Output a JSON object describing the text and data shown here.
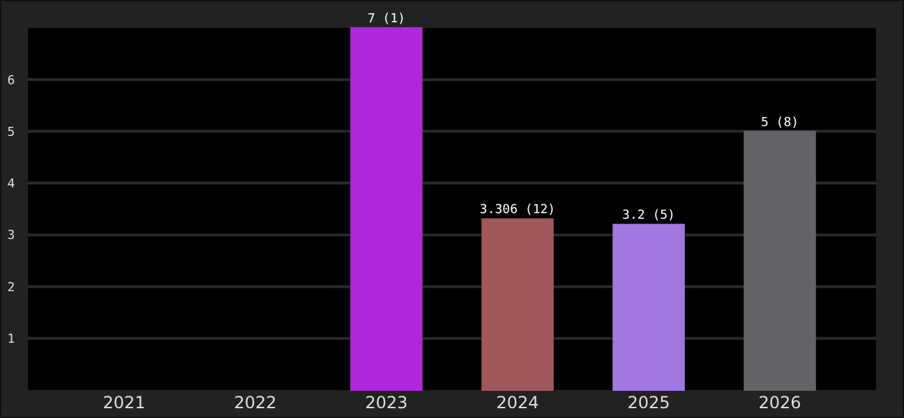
{
  "chart_data": {
    "type": "bar",
    "categories": [
      "2021",
      "2022",
      "2023",
      "2024",
      "2025",
      "2026"
    ],
    "values": [
      0,
      0,
      7,
      3.306,
      3.2,
      5
    ],
    "colors": [
      "#8b7a1a",
      "#5fbf7f",
      "#b026dc",
      "#a0585a",
      "#a078e0",
      "#636266"
    ],
    "value_labels": [
      null,
      null,
      "7 (1)",
      "3.306 (12)",
      "3.2 (5)",
      "5 (8)"
    ],
    "ylim": [
      0,
      7
    ],
    "yticks": [
      1,
      2,
      3,
      4,
      5,
      6
    ],
    "grid": "y"
  }
}
